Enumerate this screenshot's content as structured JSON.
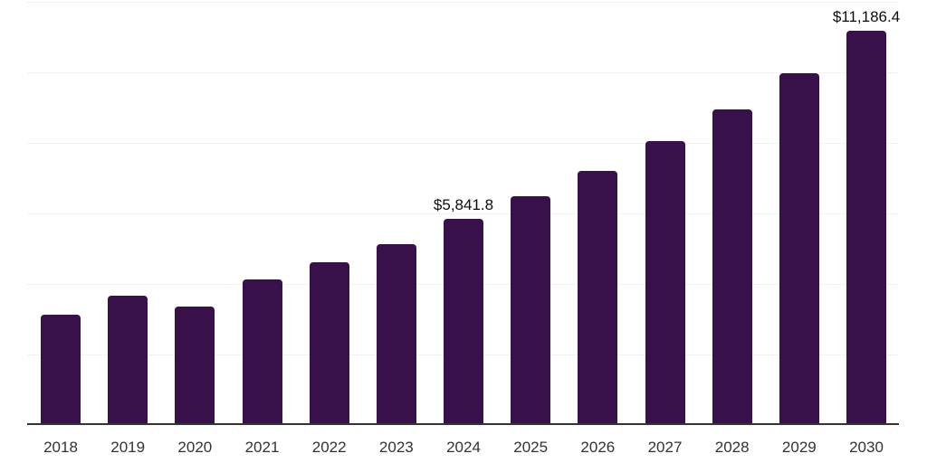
{
  "chart_data": {
    "type": "bar",
    "title": "",
    "xlabel": "",
    "ylabel": "",
    "categories": [
      "2018",
      "2019",
      "2020",
      "2021",
      "2022",
      "2023",
      "2024",
      "2025",
      "2026",
      "2027",
      "2028",
      "2029",
      "2030"
    ],
    "values": [
      3130,
      3665,
      3360,
      4135,
      4605,
      5140,
      5841.8,
      6490,
      7210,
      8050,
      8940,
      9985,
      11186.4
    ],
    "point_labels": [
      "",
      "",
      "",
      "",
      "",
      "",
      "$5,841.8",
      "",
      "",
      "",
      "",
      "",
      "$11,186.4"
    ],
    "ylim": [
      0,
      12000
    ],
    "gridline_interval": 2000,
    "grid": "horizontal-only",
    "legend": "none",
    "y_tick_labels_visible": false,
    "colors": {
      "bar": "#38104A",
      "axis_line": "#333333",
      "gridline": "#f2f2f2",
      "value_label": "#0d0d0d",
      "tick_label": "#333333",
      "background": "#ffffff"
    }
  }
}
